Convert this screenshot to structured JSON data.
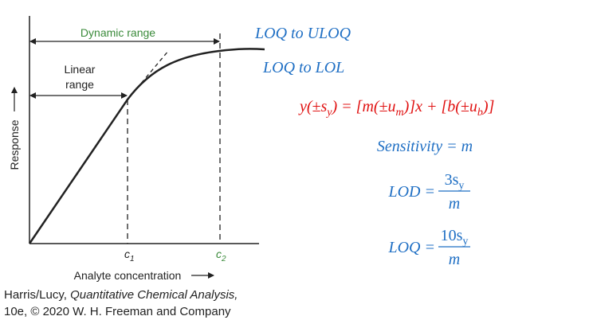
{
  "figure": {
    "dynamic_range": "Dynamic range",
    "linear_range": [
      "Linear",
      "range"
    ],
    "y_axis_label": "Response",
    "x_axis_label": "Analyte concentration",
    "c1": {
      "base": "c",
      "sub": "1"
    },
    "c2": {
      "base": "c",
      "sub": "2"
    }
  },
  "caption": {
    "authors": "Harris/Lucy, ",
    "book": "Quantitative Chemical Analysis,",
    "line2": "10e, © 2020 W. H. Freeman and Company"
  },
  "notes": {
    "dynamic": "LOQ to ULOQ",
    "linear": "LOQ to LOL"
  },
  "equations": {
    "regression": [
      {
        "text": "y(±s"
      },
      {
        "sub": "y"
      },
      {
        "text": ") = [m(±u"
      },
      {
        "sub": "m"
      },
      {
        "text": ")]x + [b(±u"
      },
      {
        "sub": "b"
      },
      {
        "text": ")]"
      }
    ],
    "sensitivity": "Sensitivity = m",
    "lod": {
      "lhs": "LOD =",
      "numerator": [
        {
          "text": "3s"
        },
        {
          "sub": "y"
        }
      ],
      "denominator": "m"
    },
    "loq": {
      "lhs": "LOQ =",
      "numerator": [
        {
          "text": "10s"
        },
        {
          "sub": "y"
        }
      ],
      "denominator": "m"
    }
  }
}
